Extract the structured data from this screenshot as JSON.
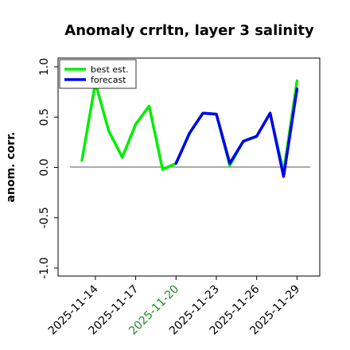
{
  "chart_data": {
    "type": "line",
    "title": "Anomaly crrltn, layer 3 salinity",
    "ylabel": "anom. corr.",
    "xlabel": "",
    "ylim": [
      -1.0,
      1.0
    ],
    "yticks": [
      "-1.0",
      "-0.5",
      "0.0",
      "0.5",
      "1.0"
    ],
    "x": [
      "2025-11-13",
      "2025-11-14",
      "2025-11-15",
      "2025-11-16",
      "2025-11-17",
      "2025-11-18",
      "2025-11-19",
      "2025-11-20",
      "2025-11-21",
      "2025-11-22",
      "2025-11-23",
      "2025-11-24",
      "2025-11-25",
      "2025-11-26",
      "2025-11-27",
      "2025-11-28",
      "2025-11-29"
    ],
    "xticks": [
      {
        "label": "2025-11-14",
        "color": "#000000"
      },
      {
        "label": "2025-11-17",
        "color": "#000000"
      },
      {
        "label": "2025-11-20",
        "color": "#228b22"
      },
      {
        "label": "2025-11-23",
        "color": "#000000"
      },
      {
        "label": "2025-11-26",
        "color": "#000000"
      },
      {
        "label": "2025-11-29",
        "color": "#000000"
      }
    ],
    "zero_line": true,
    "grid": false,
    "legend_position": "top-left",
    "series": [
      {
        "name": "best est.",
        "color": "#00ee00",
        "values": [
          0.07,
          0.84,
          0.36,
          0.1,
          0.43,
          0.61,
          -0.02,
          0.04,
          0.34,
          0.54,
          0.53,
          0.02,
          0.26,
          0.31,
          0.54,
          -0.05,
          0.86
        ]
      },
      {
        "name": "forecast",
        "color": "#0000ee",
        "values": [
          null,
          null,
          null,
          null,
          null,
          null,
          null,
          0.04,
          0.34,
          0.54,
          0.53,
          0.04,
          0.26,
          0.31,
          0.54,
          -0.09,
          0.78
        ]
      }
    ]
  }
}
